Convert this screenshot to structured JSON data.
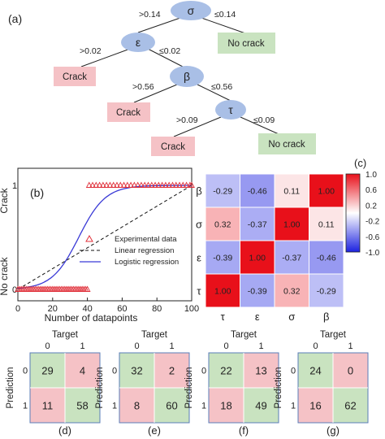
{
  "panel_labels": {
    "a": "(a)",
    "b": "(b)",
    "c": "(c)",
    "d": "(d)",
    "e": "(e)",
    "f": "(f)",
    "g": "(g)"
  },
  "tree": {
    "nodes": [
      "σ",
      "ε",
      "β",
      "τ"
    ],
    "leaf_crack": "Crack",
    "leaf_no_crack": "No crack",
    "splits": {
      "sigma_left": ">0.14",
      "sigma_right": "≤0.14",
      "eps_left": ">0.02",
      "eps_right": "≤0.02",
      "beta_left": ">0.56",
      "beta_right": "≤0.56",
      "tau_left": ">0.09",
      "tau_right": "≤0.09"
    },
    "colors": {
      "node": "#a9bfe6",
      "crack": "#f5c2c6",
      "no_crack": "#c9e3c0"
    }
  },
  "chart_data": [
    {
      "type": "scatter",
      "xlabel": "Number of datapoints",
      "y_tick_top": "Crack",
      "y_tick_bottom": "No crack",
      "y_num_top": "1",
      "y_num_bottom": "0",
      "xlim": [
        0,
        100
      ],
      "ylim": [
        0,
        1
      ],
      "x_ticks": [
        0,
        20,
        40,
        60,
        80,
        100
      ],
      "series": [
        {
          "name": "Experimental data",
          "style": "triangles",
          "color": "#e0303a",
          "points_low_x": [
            0,
            1,
            2,
            3,
            4,
            5,
            6,
            7,
            8,
            9,
            10,
            11,
            12,
            13,
            14,
            15,
            16,
            17,
            18,
            19,
            20,
            21,
            22,
            23,
            24,
            25,
            26,
            27,
            28,
            29,
            30,
            31,
            32,
            33,
            34,
            35,
            36,
            37,
            38,
            39,
            40
          ],
          "points_high_x": [
            41,
            43,
            45,
            47,
            49,
            51,
            53,
            55,
            57,
            59,
            61,
            63,
            65,
            67,
            69,
            71,
            73,
            75,
            77,
            79,
            81,
            83,
            85,
            87,
            89,
            91,
            93,
            95,
            97,
            99,
            100
          ]
        },
        {
          "name": "Linear regression",
          "style": "dashed",
          "color": "#111111",
          "x": [
            0,
            100
          ],
          "y": [
            0.0,
            1.0
          ]
        },
        {
          "name": "Logistic regression",
          "style": "solid",
          "color": "#3a3ad6",
          "midpoint": 35,
          "steepness": 0.13
        }
      ]
    },
    {
      "type": "heatmap",
      "rows": [
        "β",
        "σ",
        "ε",
        "τ"
      ],
      "cols": [
        "τ",
        "ε",
        "σ",
        "β"
      ],
      "values": [
        [
          -0.29,
          -0.46,
          0.11,
          1.0
        ],
        [
          0.32,
          -0.37,
          1.0,
          0.11
        ],
        [
          -0.39,
          1.0,
          -0.37,
          -0.46
        ],
        [
          1.0,
          -0.39,
          0.32,
          -0.29
        ]
      ],
      "labels": [
        [
          "-0.29",
          "-0.46",
          "0.11",
          "1.00"
        ],
        [
          "0.32",
          "-0.37",
          "1.00",
          "0.11"
        ],
        [
          "-0.39",
          "1.00",
          "-0.37",
          "-0.46"
        ],
        [
          "1.00",
          "-0.39",
          "0.32",
          "-0.29"
        ]
      ],
      "colorbar_ticks": [
        "1.0",
        "0.6",
        "0.2",
        "-0.2",
        "-0.6",
        "-1.0"
      ],
      "color_high": "#e8101a",
      "color_mid": "#ffffff",
      "color_low": "#1c22e0"
    },
    {
      "type": "table",
      "title": "Target",
      "row_axis": "Prediction",
      "col_labels": [
        "0",
        "1"
      ],
      "row_labels": [
        "0",
        "1"
      ],
      "values": [
        [
          29,
          4
        ],
        [
          11,
          58
        ]
      ]
    },
    {
      "type": "table",
      "title": "Target",
      "row_axis": "Prediction",
      "col_labels": [
        "0",
        "1"
      ],
      "row_labels": [
        "0",
        "1"
      ],
      "values": [
        [
          32,
          2
        ],
        [
          8,
          60
        ]
      ]
    },
    {
      "type": "table",
      "title": "Target",
      "row_axis": "Prediction",
      "col_labels": [
        "0",
        "1"
      ],
      "row_labels": [
        "0",
        "1"
      ],
      "values": [
        [
          22,
          13
        ],
        [
          18,
          49
        ]
      ]
    },
    {
      "type": "table",
      "title": "Target",
      "row_axis": "Prediction",
      "col_labels": [
        "0",
        "1"
      ],
      "row_labels": [
        "0",
        "1"
      ],
      "values": [
        [
          24,
          0
        ],
        [
          16,
          62
        ]
      ]
    }
  ],
  "confusion_colors": {
    "diagonal": "#c9e3c0",
    "off_diagonal": "#f5c2c6",
    "border": "#5a7db8"
  }
}
